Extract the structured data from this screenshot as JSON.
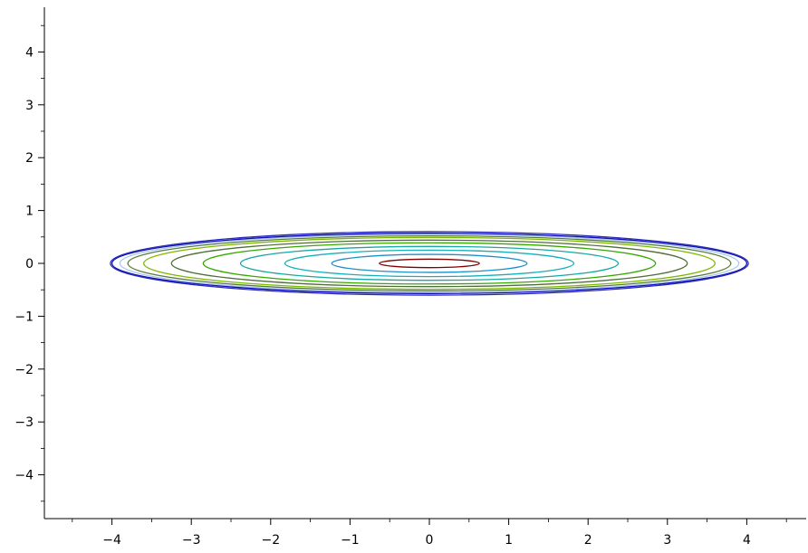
{
  "chart_data": {
    "type": "contour",
    "xlim": [
      -4.85,
      4.75
    ],
    "ylim": [
      -4.85,
      4.85
    ],
    "x_ticks": [
      -4,
      -3,
      -2,
      -1,
      0,
      1,
      2,
      3,
      4
    ],
    "y_ticks": [
      -4,
      -3,
      -2,
      -1,
      0,
      1,
      2,
      3,
      4
    ],
    "x_tick_labels": [
      "−4",
      "−3",
      "−2",
      "−1",
      "0",
      "1",
      "2",
      "3",
      "4"
    ],
    "y_tick_labels": [
      "−4",
      "−3",
      "−2",
      "−1",
      "0",
      "1",
      "2",
      "3",
      "4"
    ],
    "minor_tick_step": 0.5,
    "grid": false,
    "axis_crossing": "bottom-left",
    "contours": [
      {
        "center": [
          0,
          0
        ],
        "x_semi_axis": 0.63,
        "y_semi_axis": 0.08,
        "color": "#7f0000"
      },
      {
        "center": [
          0,
          0
        ],
        "x_semi_axis": 1.23,
        "y_semi_axis": 0.17,
        "color": "#1f8ec9"
      },
      {
        "center": [
          0,
          0
        ],
        "x_semi_axis": 1.82,
        "y_semi_axis": 0.25,
        "color": "#16b0b8"
      },
      {
        "center": [
          0,
          0
        ],
        "x_semi_axis": 2.38,
        "y_semi_axis": 0.32,
        "color": "#18a8a4"
      },
      {
        "center": [
          0,
          0
        ],
        "x_semi_axis": 2.85,
        "y_semi_axis": 0.39,
        "color": "#38a800"
      },
      {
        "center": [
          0,
          0
        ],
        "x_semi_axis": 3.25,
        "y_semi_axis": 0.44,
        "color": "#4e6e3a"
      },
      {
        "center": [
          0,
          0
        ],
        "x_semi_axis": 3.6,
        "y_semi_axis": 0.49,
        "color": "#7ab800"
      },
      {
        "center": [
          0,
          0
        ],
        "x_semi_axis": 3.8,
        "y_semi_axis": 0.52,
        "color": "#5a7a3a"
      },
      {
        "center": [
          0,
          0
        ],
        "x_semi_axis": 3.9,
        "y_semi_axis": 0.55,
        "color": "#a8c8f0"
      },
      {
        "center": [
          0,
          0
        ],
        "x_semi_axis": 4.0,
        "y_semi_axis": 0.57,
        "color": "#1010c0"
      },
      {
        "center": [
          0,
          0
        ],
        "x_semi_axis": 4.02,
        "y_semi_axis": 0.6,
        "color": "#2a2ab0"
      }
    ]
  }
}
